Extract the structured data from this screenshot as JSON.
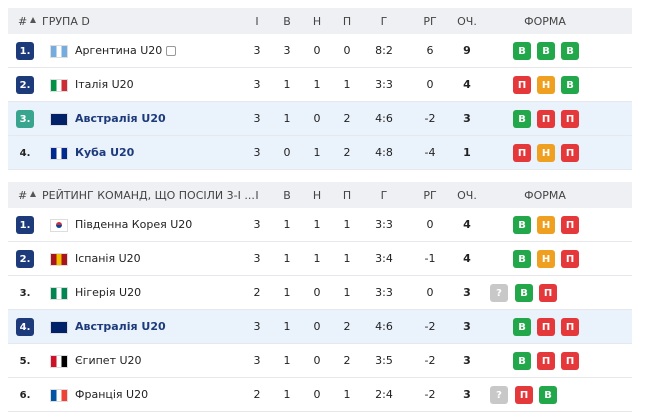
{
  "tables": [
    {
      "header": {
        "rank": "#",
        "group": "ГРУПА D",
        "played": "І",
        "won": "В",
        "drawn": "Н",
        "lost": "П",
        "goals": "Г",
        "goal_diff": "РГ",
        "points": "ОЧ.",
        "form": "ФОРМА"
      },
      "rows": [
        {
          "rank": "1.",
          "team": "Аргентина U20",
          "played": 3,
          "won": 3,
          "drawn": 0,
          "lost": 0,
          "goals": "8:2",
          "goal_diff": 6,
          "points": 9,
          "form": [
            "В",
            "В",
            "В"
          ]
        },
        {
          "rank": "2.",
          "team": "Італія U20",
          "played": 3,
          "won": 1,
          "drawn": 1,
          "lost": 1,
          "goals": "3:3",
          "goal_diff": 0,
          "points": 4,
          "form": [
            "П",
            "Н",
            "В"
          ]
        },
        {
          "rank": "3.",
          "team": "Австралія U20",
          "played": 3,
          "won": 1,
          "drawn": 0,
          "lost": 2,
          "goals": "4:6",
          "goal_diff": -2,
          "points": 3,
          "form": [
            "В",
            "П",
            "П"
          ]
        },
        {
          "rank": "4.",
          "team": "Куба U20",
          "played": 3,
          "won": 0,
          "drawn": 1,
          "lost": 2,
          "goals": "4:8",
          "goal_diff": -4,
          "points": 1,
          "form": [
            "П",
            "Н",
            "П"
          ]
        }
      ]
    },
    {
      "header": {
        "rank": "#",
        "group": "РЕЙТИНГ КОМАНД, ЩО ПОСІЛИ 3-І ...",
        "played": "І",
        "won": "В",
        "drawn": "Н",
        "lost": "П",
        "goals": "Г",
        "goal_diff": "РГ",
        "points": "ОЧ.",
        "form": "ФОРМА"
      },
      "rows": [
        {
          "rank": "1.",
          "team": "Південна Корея U20",
          "played": 3,
          "won": 1,
          "drawn": 1,
          "lost": 1,
          "goals": "3:3",
          "goal_diff": 0,
          "points": 4,
          "form": [
            "В",
            "Н",
            "П"
          ]
        },
        {
          "rank": "2.",
          "team": "Іспанія U20",
          "played": 3,
          "won": 1,
          "drawn": 1,
          "lost": 1,
          "goals": "3:4",
          "goal_diff": -1,
          "points": 4,
          "form": [
            "В",
            "Н",
            "П"
          ]
        },
        {
          "rank": "3.",
          "team": "Нігерія U20",
          "played": 2,
          "won": 1,
          "drawn": 0,
          "lost": 1,
          "goals": "3:3",
          "goal_diff": 0,
          "points": 3,
          "form": [
            "?",
            "В",
            "П"
          ]
        },
        {
          "rank": "4.",
          "team": "Австралія U20",
          "played": 3,
          "won": 1,
          "drawn": 0,
          "lost": 2,
          "goals": "4:6",
          "goal_diff": -2,
          "points": 3,
          "form": [
            "В",
            "П",
            "П"
          ]
        },
        {
          "rank": "5.",
          "team": "Єгипет U20",
          "played": 3,
          "won": 1,
          "drawn": 0,
          "lost": 2,
          "goals": "3:5",
          "goal_diff": -2,
          "points": 3,
          "form": [
            "В",
            "П",
            "П"
          ]
        },
        {
          "rank": "6.",
          "team": "Франція U20",
          "played": 2,
          "won": 1,
          "drawn": 0,
          "lost": 1,
          "goals": "2:4",
          "goal_diff": -2,
          "points": 3,
          "form": [
            "?",
            "П",
            "В"
          ]
        }
      ]
    }
  ]
}
